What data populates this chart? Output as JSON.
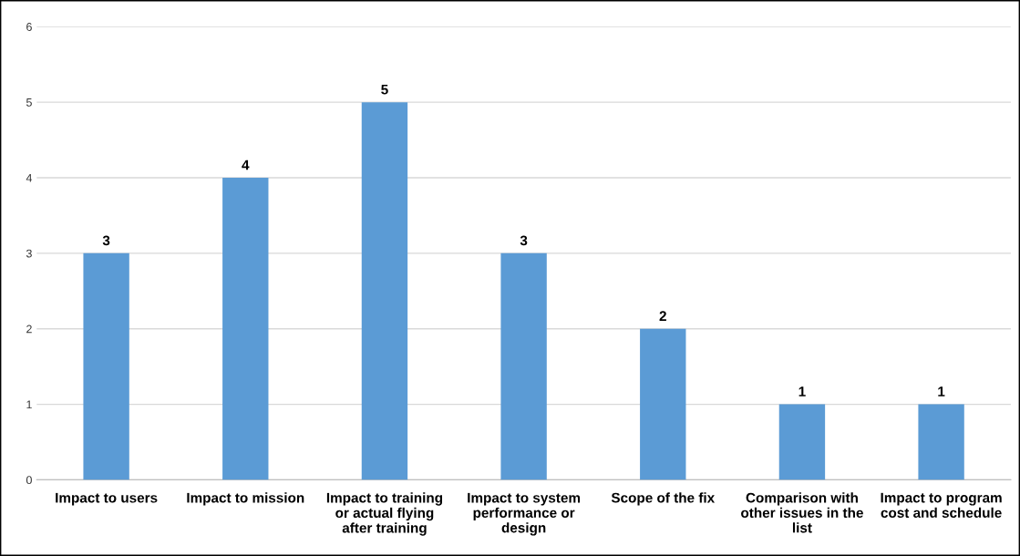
{
  "chart_data": {
    "type": "bar",
    "categories": [
      "Impact to users",
      "Impact to mission",
      "Impact to training\nor actual flying\nafter training",
      "Impact to system\nperformance or\ndesign",
      "Scope of the fix",
      "Comparison with\nother issues in the\nlist",
      "Impact to program\ncost and schedule"
    ],
    "values": [
      3,
      4,
      5,
      3,
      2,
      1,
      1
    ],
    "color": "#5b9bd5",
    "ylim": [
      0,
      6
    ],
    "yticks": [
      0,
      1,
      2,
      3,
      4,
      5,
      6
    ],
    "grid": "y",
    "data_labels": true
  }
}
